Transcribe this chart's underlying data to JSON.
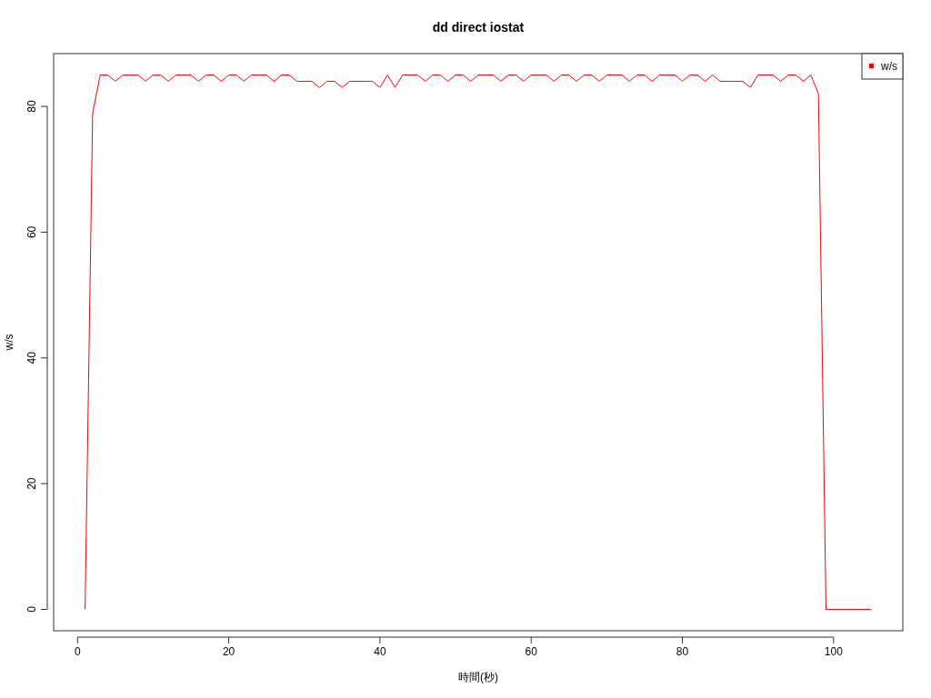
{
  "chart_data": {
    "type": "line",
    "title": "dd direct iostat",
    "xlabel": "時間(秒)",
    "ylabel": "w/s",
    "x": [
      1,
      2,
      3,
      4,
      5,
      6,
      7,
      8,
      9,
      10,
      11,
      12,
      13,
      14,
      15,
      16,
      17,
      18,
      19,
      20,
      21,
      22,
      23,
      24,
      25,
      26,
      27,
      28,
      29,
      30,
      31,
      32,
      33,
      34,
      35,
      36,
      37,
      38,
      39,
      40,
      41,
      42,
      43,
      44,
      45,
      46,
      47,
      48,
      49,
      50,
      51,
      52,
      53,
      54,
      55,
      56,
      57,
      58,
      59,
      60,
      61,
      62,
      63,
      64,
      65,
      66,
      67,
      68,
      69,
      70,
      71,
      72,
      73,
      74,
      75,
      76,
      77,
      78,
      79,
      80,
      81,
      82,
      83,
      84,
      85,
      86,
      87,
      88,
      89,
      90,
      91,
      92,
      93,
      94,
      95,
      96,
      97,
      98,
      99,
      100,
      101,
      102,
      103,
      104,
      105
    ],
    "series": [
      {
        "name": "w/s",
        "color": "#ff0000",
        "values": [
          0,
          79,
          85,
          85,
          84,
          85,
          85,
          85,
          84,
          85,
          85,
          84,
          85,
          85,
          85,
          84,
          85,
          85,
          84,
          85,
          85,
          84,
          85,
          85,
          85,
          84,
          85,
          85,
          84,
          84,
          84,
          83,
          84,
          84,
          83,
          84,
          84,
          84,
          84,
          83,
          85,
          83,
          85,
          85,
          85,
          84,
          85,
          85,
          84,
          85,
          85,
          84,
          85,
          85,
          85,
          84,
          85,
          85,
          84,
          85,
          85,
          85,
          84,
          85,
          85,
          84,
          85,
          85,
          84,
          85,
          85,
          85,
          84,
          85,
          85,
          84,
          85,
          85,
          85,
          84,
          85,
          85,
          84,
          85,
          84,
          84,
          84,
          84,
          83,
          85,
          85,
          85,
          84,
          85,
          85,
          84,
          85,
          82,
          0,
          0,
          0,
          0,
          0,
          0,
          0
        ]
      }
    ],
    "xlim": [
      -3.16,
      109.16
    ],
    "ylim": [
      -3.4,
      88.4
    ],
    "xticks": [
      0,
      20,
      40,
      60,
      80,
      100
    ],
    "yticks": [
      0,
      20,
      40,
      60,
      80
    ],
    "grid": false,
    "legend": "top right",
    "marker": "none",
    "line_style": "solid"
  }
}
